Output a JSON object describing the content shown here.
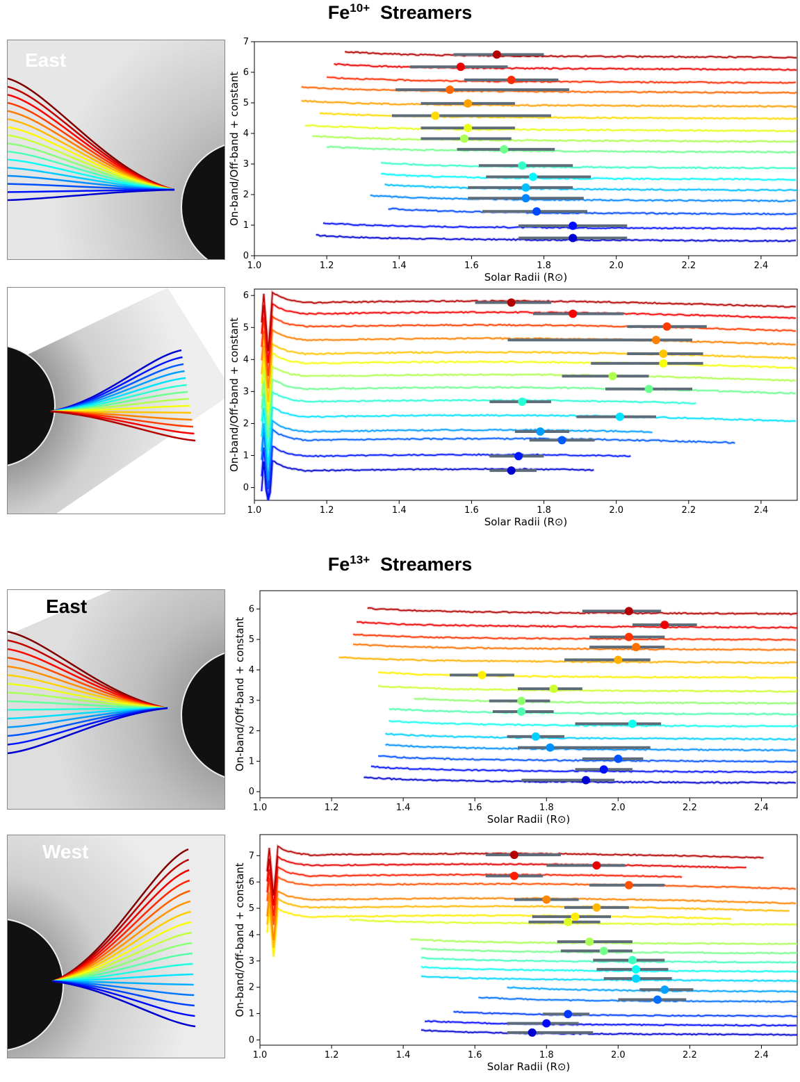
{
  "titles": [
    {
      "base": "Fe",
      "sup": "10+",
      "rest": "  Streamers"
    },
    {
      "base": "Fe",
      "sup": "13+",
      "rest": "  Streamers"
    }
  ],
  "panel_labels": [
    "East",
    "West",
    "East",
    "West"
  ],
  "chart_data": [
    {
      "type": "line",
      "xlabel": "Solar Radii (R⊙)",
      "ylabel": "On-band/Off-band + constant",
      "xlim": [
        1.0,
        2.5
      ],
      "ylim": [
        0,
        7
      ],
      "xticks": [
        "1.0",
        "1.2",
        "1.4",
        "1.6",
        "1.8",
        "2.0",
        "2.2",
        "2.4"
      ],
      "yticks": [
        "0",
        "1",
        "2",
        "3",
        "4",
        "5",
        "6",
        "7"
      ],
      "colormap": "jet",
      "series": [
        {
          "offset": 0.55,
          "x_start": 1.17,
          "x_end": 2.5,
          "peak_x": 1.88,
          "err": [
            1.73,
            2.03
          ]
        },
        {
          "offset": 0.95,
          "x_start": 1.19,
          "x_end": 2.5,
          "peak_x": 1.88,
          "err": [
            1.73,
            2.03
          ]
        },
        {
          "offset": 1.42,
          "x_start": 1.37,
          "x_end": 2.5,
          "peak_x": 1.78,
          "err": [
            1.63,
            1.92
          ]
        },
        {
          "offset": 1.85,
          "x_start": 1.32,
          "x_end": 2.5,
          "peak_x": 1.75,
          "err": [
            1.59,
            1.91
          ]
        },
        {
          "offset": 2.2,
          "x_start": 1.36,
          "x_end": 2.5,
          "peak_x": 1.75,
          "err": [
            1.59,
            1.88
          ]
        },
        {
          "offset": 2.55,
          "x_start": 1.35,
          "x_end": 2.5,
          "peak_x": 1.77,
          "err": [
            1.64,
            1.93
          ]
        },
        {
          "offset": 2.92,
          "x_start": 1.35,
          "x_end": 2.5,
          "peak_x": 1.74,
          "err": [
            1.62,
            1.88
          ]
        },
        {
          "offset": 3.45,
          "x_start": 1.2,
          "x_end": 2.5,
          "peak_x": 1.69,
          "err": [
            1.56,
            1.83
          ]
        },
        {
          "offset": 3.8,
          "x_start": 1.16,
          "x_end": 2.5,
          "peak_x": 1.58,
          "err": [
            1.46,
            1.71
          ]
        },
        {
          "offset": 4.15,
          "x_start": 1.14,
          "x_end": 2.5,
          "peak_x": 1.59,
          "err": [
            1.46,
            1.72
          ]
        },
        {
          "offset": 4.55,
          "x_start": 1.18,
          "x_end": 2.5,
          "peak_x": 1.5,
          "err": [
            1.38,
            1.82
          ]
        },
        {
          "offset": 4.95,
          "x_start": 1.13,
          "x_end": 2.5,
          "peak_x": 1.59,
          "err": [
            1.46,
            1.72
          ]
        },
        {
          "offset": 5.4,
          "x_start": 1.13,
          "x_end": 2.5,
          "peak_x": 1.54,
          "err": [
            1.39,
            1.87
          ]
        },
        {
          "offset": 5.72,
          "x_start": 1.2,
          "x_end": 2.5,
          "peak_x": 1.71,
          "err": [
            1.58,
            1.84
          ]
        },
        {
          "offset": 6.15,
          "x_start": 1.22,
          "x_end": 2.5,
          "peak_x": 1.57,
          "err": [
            1.43,
            1.7
          ]
        },
        {
          "offset": 6.55,
          "x_start": 1.25,
          "x_end": 2.5,
          "peak_x": 1.67,
          "err": [
            1.55,
            1.8
          ]
        }
      ]
    },
    {
      "type": "line",
      "xlabel": "Solar Radii (R⊙)",
      "ylabel": "On-band/Off-band + constant",
      "xlim": [
        1.0,
        2.5
      ],
      "ylim": [
        -0.4,
        6.2
      ],
      "xticks": [
        "1.0",
        "1.2",
        "1.4",
        "1.6",
        "1.8",
        "2.0",
        "2.2",
        "2.4"
      ],
      "yticks": [
        "0",
        "1",
        "2",
        "3",
        "4",
        "5",
        "6"
      ],
      "colormap": "jet",
      "series": [
        {
          "offset": 0.5,
          "x_start": 1.02,
          "x_end": 1.94,
          "peak_x": 1.71,
          "err": [
            1.65,
            1.78
          ]
        },
        {
          "offset": 0.95,
          "x_start": 1.02,
          "x_end": 2.04,
          "peak_x": 1.73,
          "err": [
            1.65,
            1.8
          ]
        },
        {
          "offset": 1.45,
          "x_start": 1.02,
          "x_end": 2.33,
          "peak_x": 1.85,
          "err": [
            1.76,
            1.94
          ]
        },
        {
          "offset": 1.72,
          "x_start": 1.02,
          "x_end": 2.1,
          "peak_x": 1.79,
          "err": [
            1.72,
            1.87
          ]
        },
        {
          "offset": 2.18,
          "x_start": 1.02,
          "x_end": 2.5,
          "peak_x": 2.01,
          "err": [
            1.89,
            2.11
          ]
        },
        {
          "offset": 2.65,
          "x_start": 1.02,
          "x_end": 2.22,
          "peak_x": 1.74,
          "err": [
            1.65,
            1.82
          ]
        },
        {
          "offset": 3.05,
          "x_start": 1.02,
          "x_end": 2.5,
          "peak_x": 2.09,
          "err": [
            1.97,
            2.21
          ]
        },
        {
          "offset": 3.45,
          "x_start": 1.02,
          "x_end": 2.5,
          "peak_x": 1.99,
          "err": [
            1.85,
            2.09
          ]
        },
        {
          "offset": 3.85,
          "x_start": 1.02,
          "x_end": 2.5,
          "peak_x": 2.13,
          "err": [
            1.93,
            2.24
          ]
        },
        {
          "offset": 4.15,
          "x_start": 1.02,
          "x_end": 2.5,
          "peak_x": 2.13,
          "err": [
            2.03,
            2.24
          ]
        },
        {
          "offset": 4.58,
          "x_start": 1.02,
          "x_end": 2.5,
          "peak_x": 2.11,
          "err": [
            1.7,
            2.21
          ]
        },
        {
          "offset": 5.0,
          "x_start": 1.02,
          "x_end": 2.5,
          "peak_x": 2.14,
          "err": [
            2.03,
            2.25
          ]
        },
        {
          "offset": 5.4,
          "x_start": 1.02,
          "x_end": 2.5,
          "peak_x": 1.88,
          "err": [
            1.77,
            2.02
          ]
        },
        {
          "offset": 5.75,
          "x_start": 1.02,
          "x_end": 2.5,
          "peak_x": 1.71,
          "err": [
            1.61,
            1.82
          ]
        }
      ]
    },
    {
      "type": "line",
      "xlabel": "Solar Radii (R⊙)",
      "ylabel": "On-band/Off-band + constant",
      "xlim": [
        1.0,
        2.5
      ],
      "ylim": [
        -0.2,
        6.6
      ],
      "xticks": [
        "1.0",
        "1.2",
        "1.4",
        "1.6",
        "1.8",
        "2.0",
        "2.2",
        "2.4"
      ],
      "yticks": [
        "0",
        "1",
        "2",
        "3",
        "4",
        "5",
        "6"
      ],
      "colormap": "jet",
      "series": [
        {
          "offset": 0.35,
          "x_start": 1.29,
          "x_end": 2.5,
          "peak_x": 1.91,
          "err": [
            1.73,
            1.99
          ]
        },
        {
          "offset": 0.7,
          "x_start": 1.31,
          "x_end": 2.5,
          "peak_x": 1.96,
          "err": [
            1.88,
            2.04
          ]
        },
        {
          "offset": 1.05,
          "x_start": 1.33,
          "x_end": 2.5,
          "peak_x": 2.0,
          "err": [
            1.9,
            2.07
          ]
        },
        {
          "offset": 1.42,
          "x_start": 1.35,
          "x_end": 2.5,
          "peak_x": 1.81,
          "err": [
            1.72,
            2.09
          ]
        },
        {
          "offset": 1.78,
          "x_start": 1.35,
          "x_end": 2.5,
          "peak_x": 1.77,
          "err": [
            1.69,
            1.85
          ]
        },
        {
          "offset": 2.2,
          "x_start": 1.36,
          "x_end": 2.5,
          "peak_x": 2.04,
          "err": [
            1.88,
            2.12
          ]
        },
        {
          "offset": 2.6,
          "x_start": 1.36,
          "x_end": 2.5,
          "peak_x": 1.73,
          "err": [
            1.65,
            1.82
          ]
        },
        {
          "offset": 2.95,
          "x_start": 1.43,
          "x_end": 2.5,
          "peak_x": 1.73,
          "err": [
            1.64,
            1.81
          ]
        },
        {
          "offset": 3.35,
          "x_start": 1.33,
          "x_end": 2.5,
          "peak_x": 1.82,
          "err": [
            1.72,
            1.9
          ]
        },
        {
          "offset": 3.8,
          "x_start": 1.33,
          "x_end": 2.5,
          "peak_x": 1.62,
          "err": [
            1.53,
            1.71
          ]
        },
        {
          "offset": 4.3,
          "x_start": 1.22,
          "x_end": 2.5,
          "peak_x": 2.0,
          "err": [
            1.85,
            2.09
          ]
        },
        {
          "offset": 4.72,
          "x_start": 1.26,
          "x_end": 2.5,
          "peak_x": 2.05,
          "err": [
            1.92,
            2.13
          ]
        },
        {
          "offset": 5.05,
          "x_start": 1.26,
          "x_end": 2.5,
          "peak_x": 2.03,
          "err": [
            1.92,
            2.13
          ]
        },
        {
          "offset": 5.45,
          "x_start": 1.27,
          "x_end": 2.5,
          "peak_x": 2.13,
          "err": [
            2.04,
            2.22
          ]
        },
        {
          "offset": 5.9,
          "x_start": 1.3,
          "x_end": 2.5,
          "peak_x": 2.03,
          "err": [
            1.9,
            2.12
          ]
        }
      ]
    },
    {
      "type": "line",
      "xlabel": "Solar Radii (R⊙)",
      "ylabel": "On-band/Off-band + constant",
      "xlim": [
        1.0,
        2.5
      ],
      "ylim": [
        -0.2,
        7.8
      ],
      "xticks": [
        "1.0",
        "1.2",
        "1.4",
        "1.6",
        "1.8",
        "2.0",
        "2.2",
        "2.4"
      ],
      "yticks": [
        "0",
        "1",
        "2",
        "3",
        "4",
        "5",
        "6",
        "7"
      ],
      "colormap": "jet",
      "series": [
        {
          "offset": 0.25,
          "x_start": 1.45,
          "x_end": 2.5,
          "peak_x": 1.76,
          "err": [
            1.69,
            1.93
          ]
        },
        {
          "offset": 0.6,
          "x_start": 1.46,
          "x_end": 2.5,
          "peak_x": 1.8,
          "err": [
            1.69,
            1.89
          ]
        },
        {
          "offset": 0.95,
          "x_start": 1.54,
          "x_end": 2.5,
          "peak_x": 1.86,
          "err": [
            1.79,
            1.92
          ]
        },
        {
          "offset": 1.5,
          "x_start": 1.61,
          "x_end": 2.5,
          "peak_x": 2.11,
          "err": [
            2.0,
            2.19
          ]
        },
        {
          "offset": 1.88,
          "x_start": 1.69,
          "x_end": 2.5,
          "peak_x": 2.13,
          "err": [
            2.06,
            2.21
          ]
        },
        {
          "offset": 2.3,
          "x_start": 1.45,
          "x_end": 2.5,
          "peak_x": 2.05,
          "err": [
            1.96,
            2.15
          ]
        },
        {
          "offset": 2.65,
          "x_start": 1.45,
          "x_end": 2.5,
          "peak_x": 2.05,
          "err": [
            1.94,
            2.14
          ]
        },
        {
          "offset": 3.0,
          "x_start": 1.45,
          "x_end": 2.5,
          "peak_x": 2.04,
          "err": [
            1.93,
            2.13
          ]
        },
        {
          "offset": 3.35,
          "x_start": 1.45,
          "x_end": 2.5,
          "peak_x": 1.96,
          "err": [
            1.84,
            2.04
          ]
        },
        {
          "offset": 3.7,
          "x_start": 1.42,
          "x_end": 2.5,
          "peak_x": 1.92,
          "err": [
            1.83,
            2.04
          ]
        },
        {
          "offset": 4.45,
          "x_start": 1.25,
          "x_end": 2.5,
          "peak_x": 1.86,
          "err": [
            1.75,
            1.95
          ]
        },
        {
          "offset": 4.65,
          "x_start": 1.02,
          "x_end": 2.32,
          "peak_x": 1.88,
          "err": [
            1.76,
            1.98
          ]
        },
        {
          "offset": 5.0,
          "x_start": 1.02,
          "x_end": 2.48,
          "peak_x": 1.94,
          "err": [
            1.85,
            2.03
          ]
        },
        {
          "offset": 5.3,
          "x_start": 1.02,
          "x_end": 2.5,
          "peak_x": 1.8,
          "err": [
            1.71,
            1.89
          ]
        },
        {
          "offset": 5.85,
          "x_start": 1.02,
          "x_end": 2.5,
          "peak_x": 2.03,
          "err": [
            1.92,
            2.13
          ]
        },
        {
          "offset": 6.2,
          "x_start": 1.02,
          "x_end": 2.18,
          "peak_x": 1.71,
          "err": [
            1.63,
            1.79
          ]
        },
        {
          "offset": 6.6,
          "x_start": 1.02,
          "x_end": 2.36,
          "peak_x": 1.94,
          "err": [
            1.8,
            2.02
          ]
        },
        {
          "offset": 7.0,
          "x_start": 1.02,
          "x_end": 2.41,
          "peak_x": 1.71,
          "err": [
            1.63,
            1.84
          ]
        }
      ]
    }
  ]
}
